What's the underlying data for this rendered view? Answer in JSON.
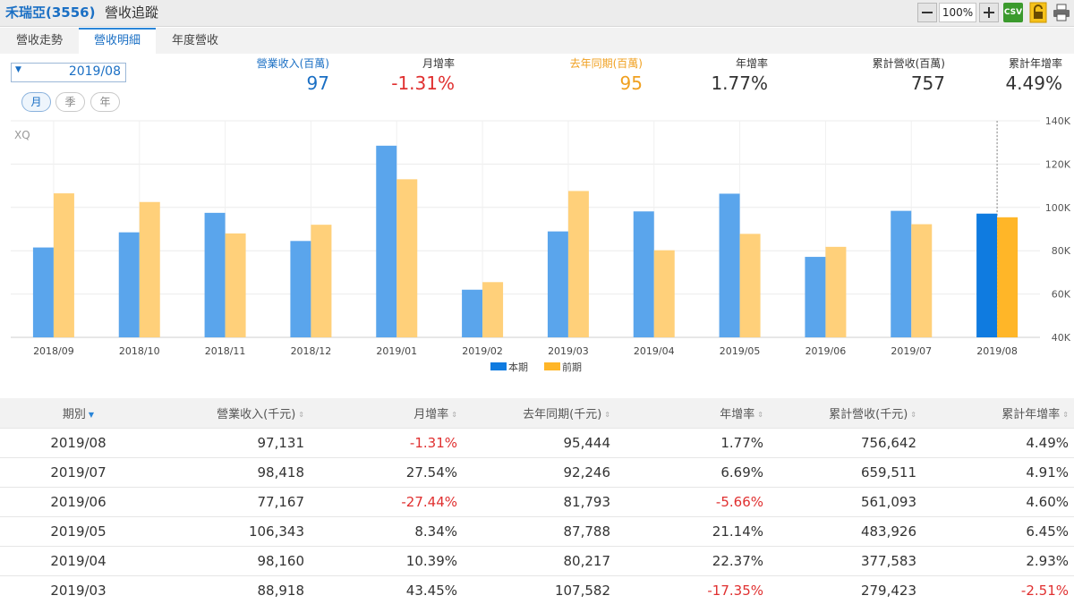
{
  "titlebar": {
    "stock": "禾瑞亞(3556)",
    "title": "營收追蹤",
    "zoom": "100%",
    "csv": "CSV"
  },
  "tabs": [
    "營收走勢",
    "營收明細",
    "年度營收"
  ],
  "active_tab": 1,
  "controls": {
    "date": "2019/08",
    "periods": [
      "月",
      "季",
      "年"
    ],
    "active_period": 0
  },
  "stats": {
    "revenue": {
      "label": "營業收入(百萬)",
      "value": "97"
    },
    "mom": {
      "label": "月增率",
      "value": "-1.31%"
    },
    "prev_year": {
      "label": "去年同期(百萬)",
      "value": "95"
    },
    "yoy": {
      "label": "年增率",
      "value": "1.77%"
    },
    "cum": {
      "label": "累計營收(百萬)",
      "value": "757"
    },
    "cum_yoy": {
      "label": "累計年增率",
      "value": "4.49%"
    }
  },
  "colors": {
    "current": "#5aa5ec",
    "current_highlight": "#0f7be0",
    "previous": "#ffd07a",
    "previous_highlight": "#ffb628",
    "negative": "#e03030",
    "accent": "#1a6fc4"
  },
  "chart_data": {
    "type": "bar",
    "watermark": "XQ",
    "categories": [
      "2018/09",
      "2018/10",
      "2018/11",
      "2018/12",
      "2019/01",
      "2019/02",
      "2019/03",
      "2019/04",
      "2019/05",
      "2019/06",
      "2019/07",
      "2019/08"
    ],
    "series": [
      {
        "name": "本期",
        "values": [
          81500,
          88500,
          97500,
          84500,
          128500,
          62000,
          88918,
          98160,
          106343,
          77167,
          98418,
          97131
        ]
      },
      {
        "name": "前期",
        "values": [
          106500,
          102500,
          88000,
          92000,
          113000,
          65500,
          107582,
          80217,
          87788,
          81793,
          92246,
          95444
        ]
      }
    ],
    "y_ticks": [
      "40K",
      "60K",
      "80K",
      "100K",
      "120K",
      "140K"
    ],
    "ylim": [
      40000,
      140000
    ],
    "highlight_index": 11,
    "legend_position": "bottom",
    "grid": true
  },
  "table": {
    "headers": [
      "期別",
      "營業收入(千元)",
      "月增率",
      "去年同期(千元)",
      "年增率",
      "累計營收(千元)",
      "累計年增率"
    ],
    "rows": [
      [
        "2019/08",
        "97,131",
        "-1.31%",
        "95,444",
        "1.77%",
        "756,642",
        "4.49%"
      ],
      [
        "2019/07",
        "98,418",
        "27.54%",
        "92,246",
        "6.69%",
        "659,511",
        "4.91%"
      ],
      [
        "2019/06",
        "77,167",
        "-27.44%",
        "81,793",
        "-5.66%",
        "561,093",
        "4.60%"
      ],
      [
        "2019/05",
        "106,343",
        "8.34%",
        "87,788",
        "21.14%",
        "483,926",
        "6.45%"
      ],
      [
        "2019/04",
        "98,160",
        "10.39%",
        "80,217",
        "22.37%",
        "377,583",
        "2.93%"
      ],
      [
        "2019/03",
        "88,918",
        "43.45%",
        "107,582",
        "-17.35%",
        "279,423",
        "-2.51%"
      ]
    ]
  }
}
